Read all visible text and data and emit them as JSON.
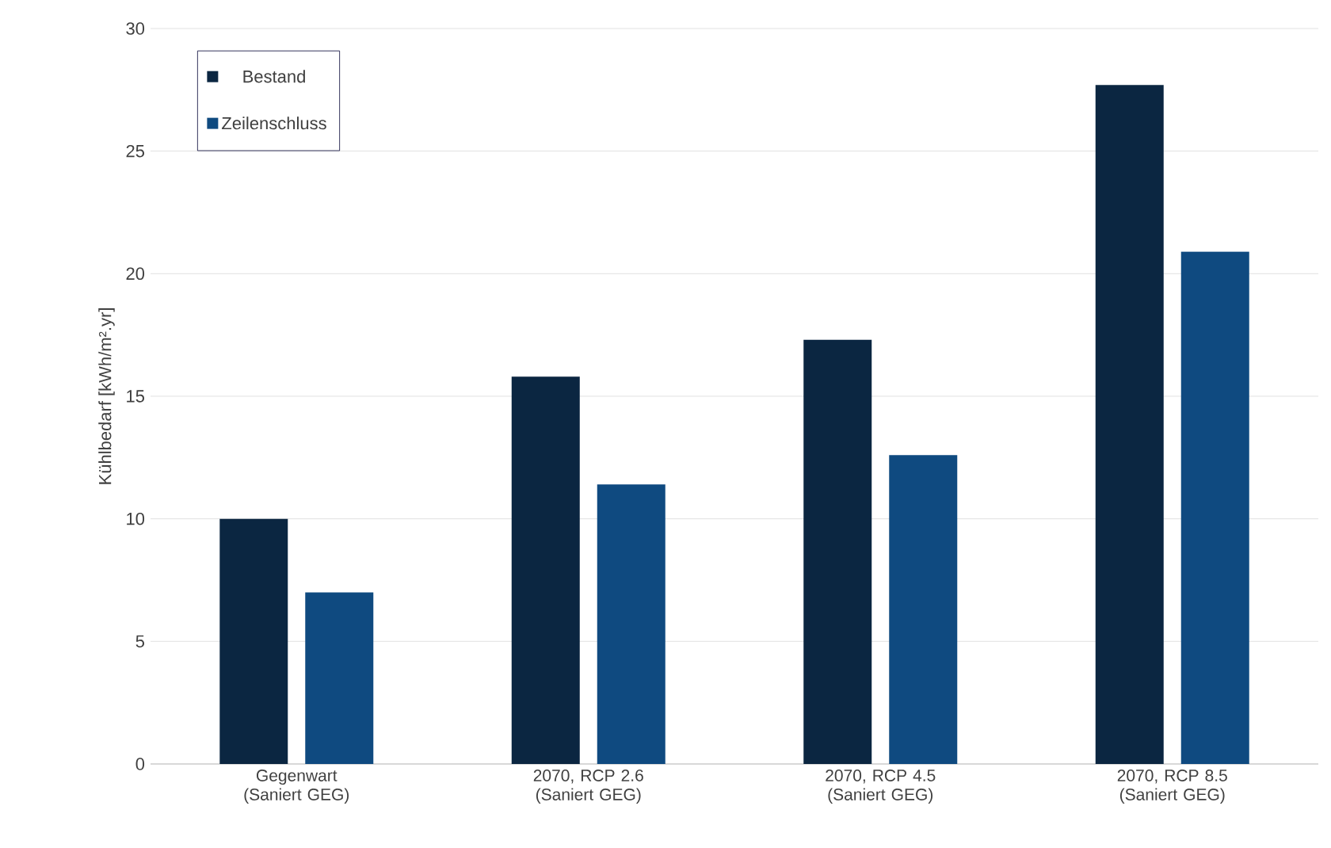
{
  "chart_data": {
    "type": "bar",
    "ylabel": "Kühlbedarf  [kWh/m².yr]",
    "categories": [
      "Gegenwart (Saniert GEG)",
      "2070, RCP 2.6 (Saniert GEG)",
      "2070, RCP 4.5 (Saniert GEG)",
      "2070, RCP 8.5 (Saniert GEG)"
    ],
    "series": [
      {
        "name": "Bestand",
        "color": "#0b2641",
        "values": [
          10.0,
          15.8,
          17.3,
          27.7
        ]
      },
      {
        "name": "Zeilenschluss",
        "color": "#0f4a80",
        "values": [
          7.0,
          11.4,
          12.6,
          20.9
        ]
      }
    ],
    "ylim": [
      0,
      30
    ],
    "yticks": [
      0,
      5,
      10,
      15,
      20,
      25,
      30
    ],
    "grid": "y",
    "legend": "top left"
  }
}
